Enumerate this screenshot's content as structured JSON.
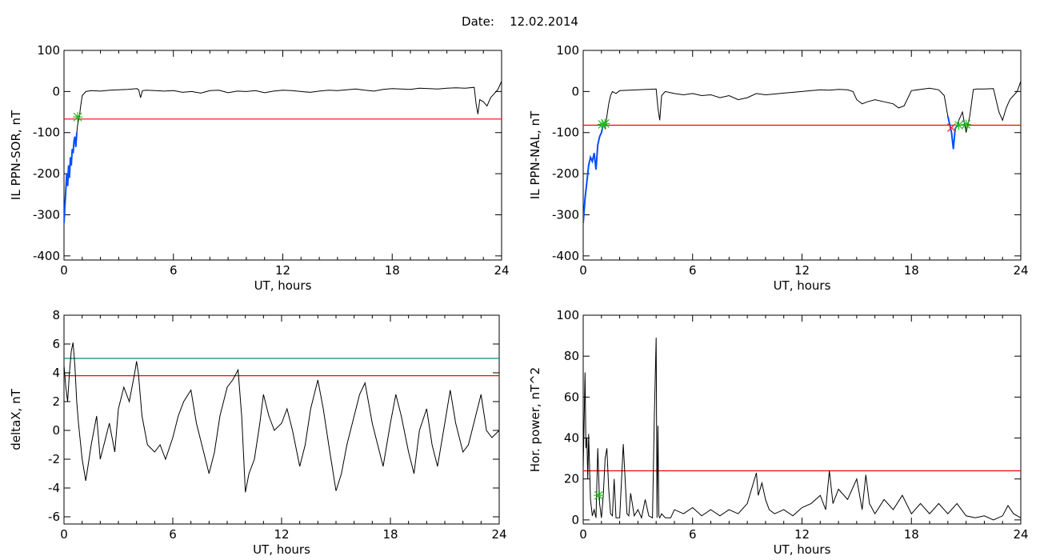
{
  "header": {
    "date_label": "Date:",
    "date_value": "12.02.2014"
  },
  "colors": {
    "trace": "#000000",
    "threshold_red": "#ff0000",
    "threshold_cyan": "#008b8b",
    "segment_blue": "#0050ff",
    "marker_green": "#22bb22",
    "marker_red": "#ff2020"
  },
  "chart_data": [
    {
      "id": "sor",
      "type": "line",
      "xlabel": "UT, hours",
      "ylabel": "IL PPN-SOR, nT",
      "xlim": [
        0,
        24
      ],
      "ylim": [
        -410,
        100
      ],
      "xticks": [
        0,
        6,
        12,
        18,
        24
      ],
      "yticks": [
        -400,
        -300,
        -200,
        -100,
        0,
        100
      ],
      "threshold": -67,
      "series": [
        {
          "x": [
            0,
            0.05,
            0.1,
            0.15,
            0.2,
            0.25,
            0.3,
            0.35,
            0.4,
            0.45,
            0.5,
            0.55,
            0.6,
            0.65,
            0.7,
            0.75,
            0.8,
            0.85,
            0.9,
            1.0,
            1.2,
            1.5,
            2.0,
            2.5,
            3.0,
            3.5,
            4.0,
            4.1,
            4.2,
            4.3,
            4.5,
            5.0,
            5.5,
            6.0,
            6.5,
            7.0,
            7.5,
            8.0,
            8.5,
            9.0,
            9.5,
            10.0,
            10.5,
            11.0,
            11.5,
            12.0,
            12.5,
            13.0,
            13.5,
            14.0,
            14.5,
            15.0,
            15.5,
            16.0,
            16.5,
            17.0,
            17.5,
            18.0,
            18.5,
            19.0,
            19.5,
            20.0,
            20.5,
            21.0,
            21.5,
            22.0,
            22.5,
            22.6,
            22.7,
            22.8,
            23.0,
            23.2,
            23.4,
            23.6,
            23.8,
            24.0
          ],
          "values": [
            -320,
            -280,
            -240,
            -200,
            -230,
            -180,
            -210,
            -160,
            -180,
            -140,
            -150,
            -120,
            -110,
            -135,
            -100,
            -80,
            -70,
            -60,
            -40,
            -10,
            0,
            2,
            1,
            3,
            4,
            5,
            7,
            4,
            -15,
            2,
            3,
            2,
            1,
            2,
            -2,
            0,
            -4,
            2,
            3,
            -3,
            1,
            0,
            2,
            -3,
            1,
            3,
            2,
            0,
            -2,
            1,
            3,
            2,
            4,
            6,
            3,
            1,
            5,
            7,
            6,
            5,
            8,
            7,
            6,
            8,
            9,
            8,
            10,
            -30,
            -55,
            -20,
            -25,
            -35,
            -15,
            -5,
            5,
            25
          ]
        }
      ],
      "blue_segment": {
        "x": [
          0,
          0.05,
          0.1,
          0.15,
          0.2,
          0.25,
          0.3,
          0.35,
          0.4,
          0.45,
          0.5,
          0.55,
          0.6,
          0.65,
          0.7
        ],
        "values": [
          -320,
          -280,
          -240,
          -200,
          -230,
          -180,
          -210,
          -160,
          -180,
          -140,
          -150,
          -120,
          -110,
          -135,
          -100
        ]
      },
      "markers": [
        {
          "x": 0.75,
          "value": -62,
          "symbol": "asterisk",
          "color": "#22bb22"
        }
      ]
    },
    {
      "id": "nal",
      "type": "line",
      "xlabel": "UT, hours",
      "ylabel": "IL PPN-NAL, nT",
      "xlim": [
        0,
        24
      ],
      "ylim": [
        -410,
        100
      ],
      "xticks": [
        0,
        6,
        12,
        18,
        24
      ],
      "yticks": [
        -400,
        -300,
        -200,
        -100,
        0,
        100
      ],
      "threshold": -82,
      "series": [
        {
          "x": [
            0,
            0.1,
            0.2,
            0.3,
            0.4,
            0.5,
            0.6,
            0.7,
            0.8,
            0.9,
            1.0,
            1.1,
            1.2,
            1.3,
            1.4,
            1.5,
            1.6,
            1.8,
            2.0,
            2.5,
            3.0,
            3.5,
            4.0,
            4.1,
            4.2,
            4.3,
            4.5,
            5.0,
            5.5,
            6.0,
            6.5,
            7.0,
            7.5,
            8.0,
            8.5,
            9.0,
            9.5,
            10.0,
            10.5,
            11.0,
            11.5,
            12.0,
            12.5,
            13.0,
            13.5,
            14.0,
            14.5,
            14.8,
            15.0,
            15.3,
            15.6,
            16.0,
            16.5,
            17.0,
            17.3,
            17.6,
            18.0,
            18.5,
            19.0,
            19.5,
            19.8,
            20.0,
            20.2,
            20.3,
            20.4,
            20.5,
            20.6,
            20.8,
            21.0,
            21.2,
            21.4,
            21.6,
            22.0,
            22.5,
            22.8,
            23.0,
            23.2,
            23.4,
            23.6,
            23.8,
            24.0
          ],
          "values": [
            -320,
            -260,
            -220,
            -180,
            -160,
            -170,
            -150,
            -190,
            -130,
            -110,
            -100,
            -80,
            -90,
            -60,
            -30,
            -10,
            0,
            -5,
            2,
            3,
            4,
            5,
            6,
            -40,
            -70,
            -10,
            0,
            -5,
            -8,
            -5,
            -10,
            -8,
            -15,
            -10,
            -20,
            -15,
            -5,
            -8,
            -6,
            -4,
            -2,
            0,
            2,
            4,
            3,
            5,
            4,
            0,
            -20,
            -30,
            -25,
            -20,
            -25,
            -30,
            -40,
            -35,
            2,
            5,
            8,
            4,
            -10,
            -60,
            -100,
            -140,
            -90,
            -85,
            -70,
            -50,
            -100,
            -60,
            5,
            6,
            6,
            7,
            -50,
            -70,
            -40,
            -20,
            -10,
            0,
            25
          ]
        }
      ],
      "blue_segment": {
        "x": [
          0,
          0.1,
          0.2,
          0.3,
          0.4,
          0.5,
          0.6,
          0.7,
          0.8,
          0.9,
          1.0,
          1.1
        ],
        "values": [
          -320,
          -260,
          -220,
          -180,
          -160,
          -170,
          -150,
          -190,
          -130,
          -110,
          -100,
          -80
        ]
      },
      "blue_segment_2": {
        "x": [
          20.0,
          20.2,
          20.3,
          20.4,
          20.5
        ],
        "values": [
          -60,
          -100,
          -140,
          -90,
          -85
        ]
      },
      "markers": [
        {
          "x": 1.05,
          "value": -80,
          "symbol": "asterisk",
          "color": "#22bb22"
        },
        {
          "x": 1.2,
          "value": -78,
          "symbol": "asterisk",
          "color": "#22bb22"
        },
        {
          "x": 20.2,
          "value": -88,
          "symbol": "cross",
          "color": "#ff2020"
        },
        {
          "x": 20.6,
          "value": -82,
          "symbol": "asterisk",
          "color": "#22bb22"
        },
        {
          "x": 21.0,
          "value": -80,
          "symbol": "asterisk",
          "color": "#22bb22"
        }
      ]
    },
    {
      "id": "deltax",
      "type": "line",
      "xlabel": "UT, hours",
      "ylabel": "deltaX, nT",
      "xlim": [
        0,
        24
      ],
      "ylim": [
        -6.5,
        8
      ],
      "xticks": [
        0,
        6,
        12,
        18,
        24
      ],
      "yticks": [
        -6,
        -4,
        -2,
        0,
        2,
        4,
        6,
        8
      ],
      "threshold": 3.8,
      "threshold2": 5.0,
      "series": [
        {
          "x": [
            0,
            0.1,
            0.2,
            0.3,
            0.4,
            0.5,
            0.6,
            0.7,
            0.8,
            1.0,
            1.2,
            1.5,
            1.8,
            2.0,
            2.2,
            2.5,
            2.8,
            3.0,
            3.3,
            3.6,
            3.9,
            4.0,
            4.1,
            4.3,
            4.6,
            5.0,
            5.3,
            5.6,
            6.0,
            6.3,
            6.6,
            7.0,
            7.3,
            7.6,
            8.0,
            8.3,
            8.6,
            9.0,
            9.3,
            9.6,
            9.8,
            10.0,
            10.2,
            10.5,
            10.8,
            11.0,
            11.3,
            11.6,
            12.0,
            12.3,
            12.6,
            13.0,
            13.3,
            13.6,
            14.0,
            14.3,
            14.6,
            15.0,
            15.3,
            15.6,
            16.0,
            16.3,
            16.6,
            17.0,
            17.3,
            17.6,
            18.0,
            18.3,
            18.6,
            19.0,
            19.3,
            19.6,
            20.0,
            20.3,
            20.6,
            21.0,
            21.3,
            21.6,
            22.0,
            22.3,
            22.6,
            23.0,
            23.3,
            23.6,
            24.0
          ],
          "values": [
            4.5,
            3.0,
            2.0,
            4.0,
            5.5,
            6.1,
            4.5,
            2.0,
            0.5,
            -2.0,
            -3.5,
            -1.0,
            1.0,
            -2.0,
            -1.0,
            0.5,
            -1.5,
            1.5,
            3.0,
            2.0,
            4.0,
            4.8,
            4.0,
            1.0,
            -1.0,
            -1.5,
            -1.0,
            -2.0,
            -0.5,
            1.0,
            2.0,
            2.8,
            0.5,
            -1.0,
            -3.0,
            -1.5,
            1.0,
            3.0,
            3.5,
            4.2,
            1.0,
            -4.3,
            -3.0,
            -2.0,
            0.5,
            2.5,
            1.0,
            0.0,
            0.5,
            1.5,
            0.0,
            -2.5,
            -1.0,
            1.5,
            3.5,
            1.5,
            -1.0,
            -4.2,
            -3.0,
            -1.0,
            1.0,
            2.5,
            3.3,
            0.5,
            -1.0,
            -2.5,
            0.5,
            2.5,
            1.0,
            -1.5,
            -3.0,
            0.0,
            1.5,
            -1.0,
            -2.5,
            0.5,
            2.8,
            0.5,
            -1.5,
            -1.0,
            0.5,
            2.5,
            0.0,
            -0.5,
            0.0
          ]
        }
      ]
    },
    {
      "id": "hpower",
      "type": "line",
      "xlabel": "UT, hours",
      "ylabel": "Hor. power, nT^2",
      "xlim": [
        0,
        24
      ],
      "ylim": [
        -2,
        100
      ],
      "xticks": [
        0,
        6,
        12,
        18,
        24
      ],
      "yticks": [
        0,
        20,
        40,
        60,
        80,
        100
      ],
      "threshold": 24,
      "series": [
        {
          "x": [
            0,
            0.1,
            0.15,
            0.2,
            0.25,
            0.3,
            0.4,
            0.5,
            0.6,
            0.7,
            0.8,
            0.9,
            1.0,
            1.1,
            1.2,
            1.3,
            1.4,
            1.5,
            1.6,
            1.7,
            1.8,
            2.0,
            2.2,
            2.4,
            2.5,
            2.6,
            2.8,
            3.0,
            3.2,
            3.4,
            3.6,
            3.8,
            3.9,
            4.0,
            4.05,
            4.1,
            4.15,
            4.2,
            4.3,
            4.5,
            4.8,
            5.0,
            5.5,
            6.0,
            6.5,
            7.0,
            7.5,
            8.0,
            8.5,
            9.0,
            9.5,
            9.6,
            9.8,
            10.0,
            10.2,
            10.5,
            11.0,
            11.5,
            12.0,
            12.5,
            13.0,
            13.3,
            13.5,
            13.7,
            14.0,
            14.5,
            15.0,
            15.3,
            15.5,
            15.7,
            16.0,
            16.5,
            17.0,
            17.5,
            18.0,
            18.5,
            19.0,
            19.5,
            20.0,
            20.5,
            21.0,
            21.5,
            22.0,
            22.5,
            23.0,
            23.3,
            23.6,
            24.0
          ],
          "values": [
            25,
            72,
            35,
            40,
            20,
            42,
            10,
            2,
            5,
            1,
            35,
            8,
            1,
            12,
            30,
            35,
            15,
            3,
            2,
            20,
            1,
            1,
            37,
            3,
            2,
            13,
            2,
            5,
            1,
            10,
            2,
            1,
            50,
            89,
            1,
            46,
            2,
            1,
            3,
            1,
            1,
            5,
            3,
            6,
            2,
            5,
            2,
            5,
            3,
            8,
            23,
            12,
            18,
            10,
            5,
            3,
            5,
            2,
            6,
            8,
            12,
            5,
            24,
            8,
            15,
            10,
            20,
            5,
            22,
            8,
            3,
            10,
            5,
            12,
            3,
            8,
            3,
            8,
            3,
            8,
            2,
            1,
            2,
            0,
            2,
            7,
            3,
            1
          ]
        }
      ],
      "markers": [
        {
          "x": 0.85,
          "value": 12,
          "symbol": "asterisk",
          "color": "#22bb22"
        }
      ]
    }
  ]
}
